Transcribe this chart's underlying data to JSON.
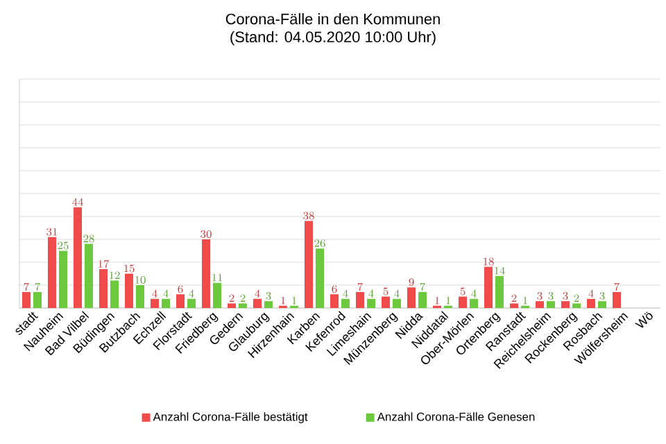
{
  "chart_data": {
    "type": "bar",
    "title": "Corona-Fälle in den Kommunen",
    "subtitle": "(Stand: 04.05.2020 10:00 Uhr)",
    "categories": [
      "stadt",
      "Nauheim",
      "Bad Vilbel",
      "Büdingen",
      "Butzbach",
      "Echzell",
      "Florstadt",
      "Friedberg",
      "Gedern",
      "Glauburg",
      "Hirzenhain",
      "Karben",
      "Kefenrod",
      "Limeshain",
      "Münzenberg",
      "Nidda",
      "Niddatal",
      "Ober-Mörlen",
      "Ortenberg",
      "Ranstadt",
      "Reichelsheim",
      "Rockenberg",
      "Rosbach",
      "Wölfersheim",
      "Wö"
    ],
    "series": [
      {
        "name": "Anzahl Corona-Fälle bestätigt",
        "color": "#f04a4a",
        "values": [
          7,
          31,
          44,
          17,
          15,
          4,
          6,
          30,
          2,
          4,
          1,
          38,
          6,
          7,
          5,
          9,
          1,
          5,
          18,
          2,
          3,
          3,
          4,
          7,
          null
        ]
      },
      {
        "name": "Anzahl Corona-Fälle Genesen",
        "color": "#6cc83c",
        "values": [
          7,
          25,
          28,
          12,
          10,
          4,
          4,
          11,
          2,
          3,
          1,
          26,
          4,
          4,
          4,
          7,
          1,
          4,
          14,
          1,
          3,
          2,
          3,
          null,
          null
        ]
      }
    ],
    "ylim": [
      0,
      100
    ],
    "yticks": [
      {
        "value": 0,
        "label": null
      },
      {
        "value": 10,
        "label": null
      },
      {
        "value": 20,
        "label": null
      },
      {
        "value": 30,
        "label": null
      },
      {
        "value": 40,
        "label": null
      },
      {
        "value": 50,
        "label": null
      },
      {
        "value": 60,
        "label": null
      },
      {
        "value": 70,
        "label": null
      },
      {
        "value": 80,
        "label": null
      },
      {
        "value": 90,
        "label": null
      },
      {
        "value": 100,
        "label": null
      }
    ],
    "tick_labels": "x",
    "grid": "y",
    "legend": "bottom",
    "data_labels": true
  }
}
